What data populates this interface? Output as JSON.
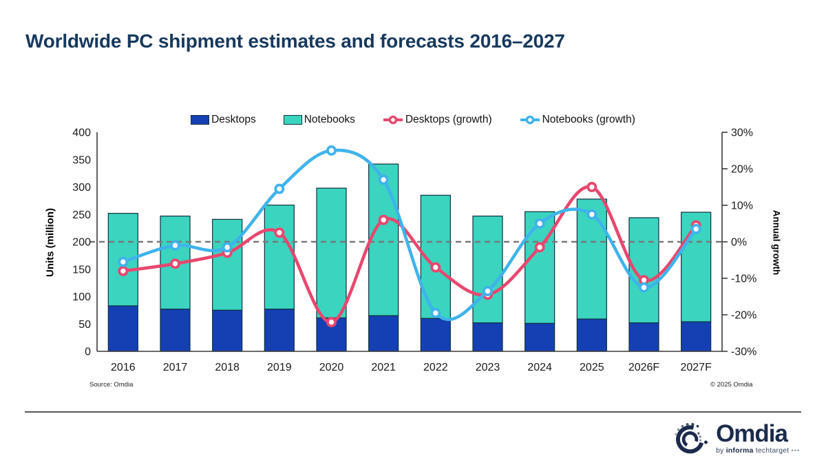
{
  "title": "Worldwide PC shipment estimates and forecasts 2016–2027",
  "footer": {
    "source": "Source: Omdia",
    "copyright": "© 2025 Omdia"
  },
  "branding": {
    "logo_text": "Omdia",
    "tagline_by": "by",
    "tagline_informa": "informa",
    "tagline_techtarget": "techtarget",
    "logo_dots": "•••"
  },
  "colors": {
    "title_navy": "#17395d",
    "desktops_bar": "#1540b4",
    "notebooks_bar": "#3bd4bf",
    "desktops_line": "#e8476e",
    "notebooks_line": "#3fb3ec",
    "bar_outline": "#10303e",
    "axis_line": "#3a3a3a",
    "zero_line": "#787878",
    "logo_navy": "#1b2b4c"
  },
  "chart_data": {
    "type": "bar+line",
    "stacked_bars": true,
    "categories": [
      "2016",
      "2017",
      "2018",
      "2019",
      "2020",
      "2021",
      "2022",
      "2023",
      "2024",
      "2025",
      "2026F",
      "2027F"
    ],
    "bar_series": [
      {
        "name": "Desktops",
        "axis": "left",
        "color": "#1540b4",
        "values": [
          83,
          77,
          75,
          77,
          61,
          65,
          60,
          52,
          51,
          59,
          52,
          54
        ]
      },
      {
        "name": "Notebooks",
        "axis": "left",
        "color": "#3bd4bf",
        "values": [
          169,
          170,
          166,
          190,
          237,
          277,
          225,
          195,
          204,
          219,
          192,
          200
        ]
      }
    ],
    "bar_totals": [
      252,
      247,
      241,
      267,
      298,
      342,
      285,
      247,
      255,
      278,
      244,
      254
    ],
    "line_series": [
      {
        "name": "Desktops (growth)",
        "axis": "right",
        "color": "#e8476e",
        "values": [
          -8,
          -6,
          -3,
          2.5,
          -22,
          6,
          -7,
          -14.5,
          -1.5,
          15,
          -10.5,
          4.5
        ]
      },
      {
        "name": "Notebooks (growth)",
        "axis": "right",
        "color": "#3fb3ec",
        "values": [
          -5.5,
          -1,
          -1.5,
          14.5,
          25,
          17,
          -19.5,
          -13.5,
          5,
          7.5,
          -12.5,
          3.5
        ]
      }
    ],
    "left_axis": {
      "label": "Units (million)",
      "min": 0,
      "max": 400,
      "tick_values": [
        0,
        50,
        100,
        150,
        200,
        250,
        300,
        350,
        400
      ],
      "tick_labels": [
        "0",
        "50",
        "100",
        "150",
        "200",
        "250",
        "300",
        "350",
        "400"
      ]
    },
    "right_axis": {
      "label": "Annual growth",
      "min": -30,
      "max": 30,
      "tick_values": [
        -30,
        -20,
        -10,
        0,
        10,
        20,
        30
      ],
      "tick_labels": [
        "-30%",
        "-20%",
        "-10%",
        "0%",
        "10%",
        "20%",
        "30%"
      ]
    },
    "zero_reference_line": {
      "axis": "right",
      "value": 0,
      "style": "dashed"
    },
    "legend_position": "top-center",
    "grid": "none"
  }
}
